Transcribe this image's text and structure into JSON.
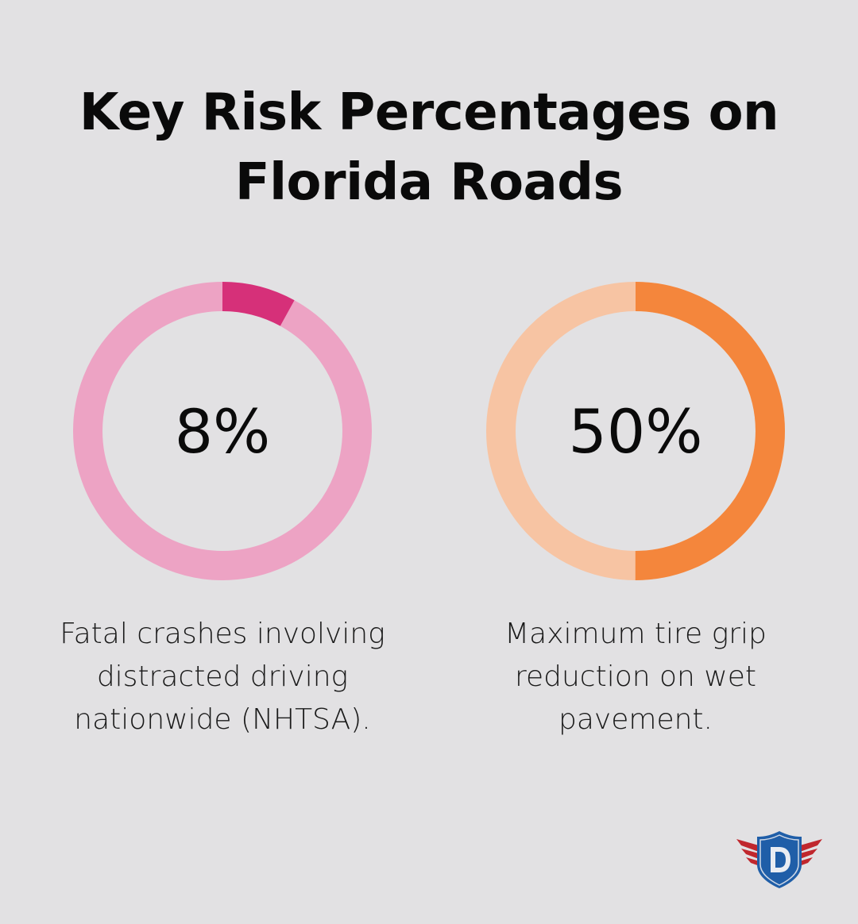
{
  "title": "Key Risk Percentages on Florida Roads",
  "chart_data": [
    {
      "type": "pie",
      "style": "donut",
      "value_percent": 8,
      "label": "8%",
      "description": "Fatal crashes involving distracted driving nationwide (NHTSA).",
      "colors": {
        "value": "#d63079",
        "remainder": "#eda3c4"
      }
    },
    {
      "type": "pie",
      "style": "donut",
      "value_percent": 50,
      "label": "50%",
      "description": "Maximum tire grip reduction on wet pavement.",
      "colors": {
        "value": "#f4863c",
        "remainder": "#f7c4a3"
      }
    }
  ],
  "logo": {
    "letter": "D",
    "colors": {
      "shield": "#1f5ea8",
      "wings": "#c0272d"
    }
  }
}
